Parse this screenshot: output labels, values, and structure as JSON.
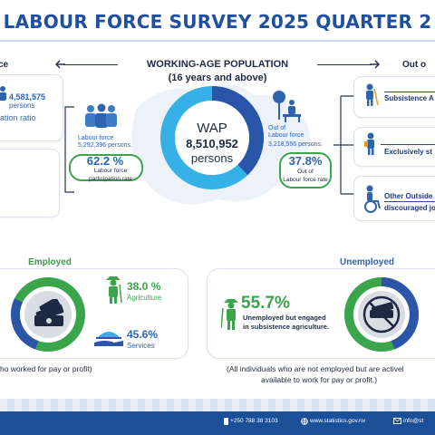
{
  "header": {
    "title": "LABOUR FORCE SURVEY 2025 QUARTER 2"
  },
  "wap": {
    "title_line1": "WORKING-AGE POPULATION",
    "title_line2": "(16 years and above)",
    "center_label": "WAP",
    "center_value": "8,510,952",
    "center_unit": "persons"
  },
  "left_edge": {
    "label": "ce",
    "employed_count": "4,581,575",
    "employed_unit": "persons",
    "employed_rate_label": "ation ratio"
  },
  "labour_force": {
    "label": "Labour force",
    "value": "5,292,396 persons.",
    "rate": "62.2 %",
    "rate_label_1": "Labour force",
    "rate_label_2": "participation rate"
  },
  "out_labour_force": {
    "label_1": "Out of",
    "label_2": "Labour force",
    "value": "3,218,556 persons.",
    "rate": "37.8%",
    "rate_label_1": "Out of",
    "rate_label_2": "Labour force rate"
  },
  "right_edge": {
    "label": "Out o",
    "items": [
      {
        "label": "Subsistence A"
      },
      {
        "label": "Exclusively st"
      },
      {
        "label_1": "Other Outside",
        "label_2": "discouraged jo"
      }
    ]
  },
  "employed_section": {
    "title": "Employed",
    "agriculture_pct": "38.0 %",
    "agriculture_label": "Agriculture",
    "services_pct": "45.6%",
    "services_label": "Services",
    "caption": "ho worked for pay or profit)"
  },
  "unemployed_section": {
    "title": "Unemployed",
    "subsistence_pct": "55.7%",
    "subsistence_label_1": "Unemployed but engaged",
    "subsistence_label_2": "in subsistence agriculture.",
    "caption_1": "(All individuals who are not employed but are activel",
    "caption_2": "available to work for pay or profit.)"
  },
  "footer": {
    "phone": "+250 788 38 3103",
    "website": "www.statistics.gov.rw",
    "email": "info@st"
  },
  "colors": {
    "brand_blue": "#1f4f9e",
    "donut_dark": "#2a55a8",
    "donut_light": "#35b1e8",
    "green": "#3aa54b"
  }
}
